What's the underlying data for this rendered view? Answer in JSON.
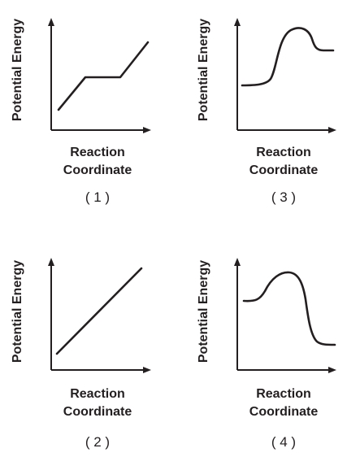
{
  "panels": [
    {
      "number": "( 1 )",
      "y_label": "Potential Energy",
      "x_label_line1": "Reaction",
      "x_label_line2": "Coordinate"
    },
    {
      "number": "( 3 )",
      "y_label": "Potential Energy",
      "x_label_line1": "Reaction",
      "x_label_line2": "Coordinate"
    },
    {
      "number": "( 2 )",
      "y_label": "Potential Energy",
      "x_label_line1": "Reaction",
      "x_label_line2": "Coordinate"
    },
    {
      "number": "( 4 )",
      "y_label": "Potential Energy",
      "x_label_line1": "Reaction",
      "x_label_line2": "Coordinate"
    }
  ],
  "colors": {
    "ink": "#231f20",
    "background": "#ffffff"
  }
}
